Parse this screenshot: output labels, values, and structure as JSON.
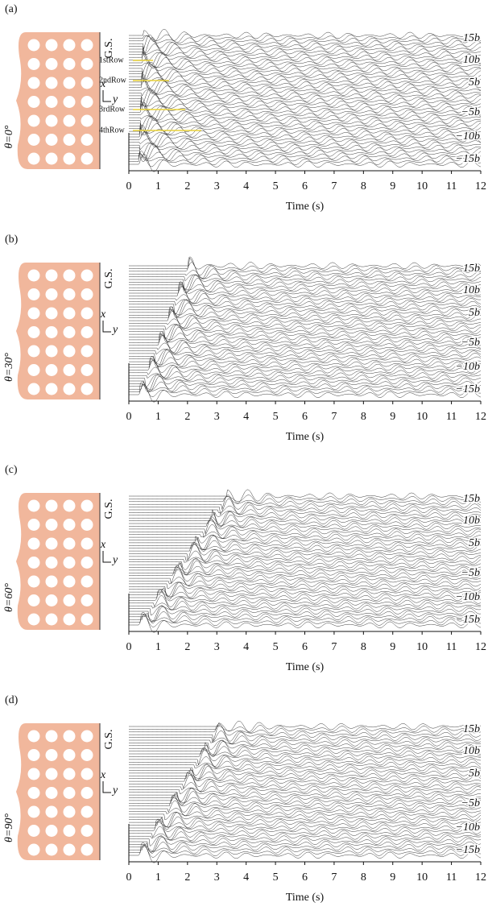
{
  "panels": [
    {
      "label": "(a)",
      "angle_label": "θ=0°",
      "gs_label": "G.S.",
      "axis_x": "x",
      "axis_y": "y",
      "row_labels": [
        "1stRow",
        "2ndRow",
        "3rdRow",
        "4thRow"
      ],
      "offset_labels": [
        "15b",
        "10b",
        "5b",
        "−5b",
        "−10b",
        "−15b"
      ],
      "chart_data": {
        "type": "wiggle",
        "xlabel": "Time (s)",
        "xlim": [
          0,
          12
        ],
        "xticks": [
          0,
          1,
          2,
          3,
          4,
          5,
          6,
          7,
          8,
          9,
          10,
          11,
          12
        ]
      }
    },
    {
      "label": "(b)",
      "angle_label": "θ=30°",
      "gs_label": "G.S.",
      "axis_x": "x",
      "axis_y": "y",
      "offset_labels": [
        "15b",
        "10b",
        "5b",
        "−5b",
        "−10b",
        "−15b"
      ],
      "chart_data": {
        "type": "wiggle",
        "xlabel": "Time (s)",
        "xlim": [
          0,
          12
        ],
        "xticks": [
          0,
          1,
          2,
          3,
          4,
          5,
          6,
          7,
          8,
          9,
          10,
          11,
          12
        ]
      }
    },
    {
      "label": "(c)",
      "angle_label": "θ=60°",
      "gs_label": "G.S.",
      "axis_x": "x",
      "axis_y": "y",
      "offset_labels": [
        "15b",
        "10b",
        "5b",
        "−5b",
        "−10b",
        "−15b"
      ],
      "chart_data": {
        "type": "wiggle",
        "xlabel": "Time (s)",
        "xlim": [
          0,
          12
        ],
        "xticks": [
          0,
          1,
          2,
          3,
          4,
          5,
          6,
          7,
          8,
          9,
          10,
          11,
          12
        ]
      }
    },
    {
      "label": "(d)",
      "angle_label": "θ=90°",
      "gs_label": "G.S.",
      "axis_x": "x",
      "axis_y": "y",
      "offset_labels": [
        "15b",
        "10b",
        "5b",
        "−5b",
        "−10b",
        "−15b"
      ],
      "chart_data": {
        "type": "wiggle",
        "xlabel": "Time (s)",
        "xlim": [
          0,
          12
        ],
        "xticks": [
          0,
          1,
          2,
          3,
          4,
          5,
          6,
          7,
          8,
          9,
          10,
          11,
          12
        ]
      }
    }
  ]
}
